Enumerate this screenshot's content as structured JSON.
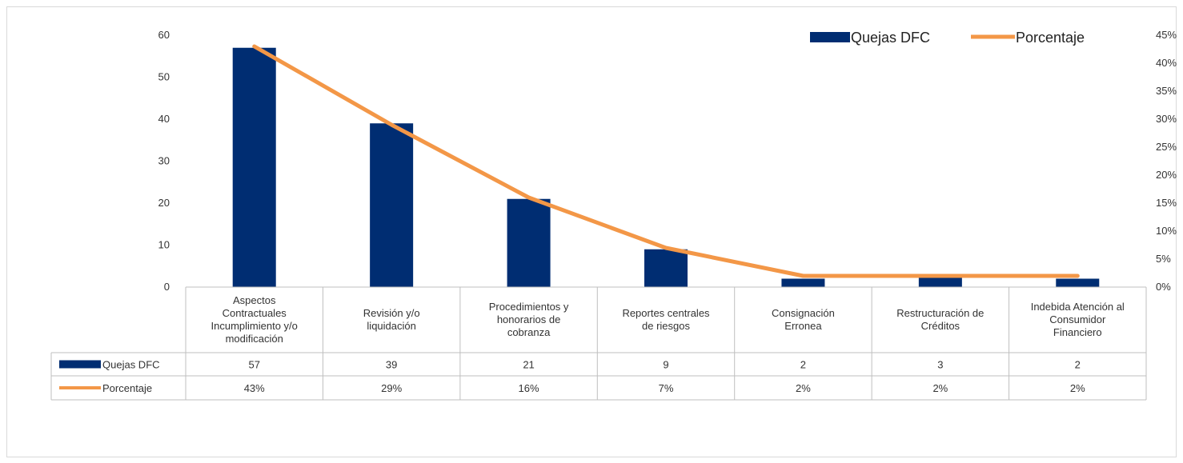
{
  "chart_data": {
    "type": "bar",
    "categories": [
      [
        "Aspectos",
        "Contractuales",
        "Incumplimiento y/o",
        "modificación"
      ],
      [
        "Revisión y/o",
        "liquidación"
      ],
      [
        "Procedimientos y",
        "honorarios de",
        "cobranza"
      ],
      [
        "Reportes centrales",
        "de riesgos"
      ],
      [
        "Consignación",
        "Erronea"
      ],
      [
        "Restructuración de",
        "Créditos"
      ],
      [
        "Indebida Atención al",
        "Consumidor",
        "Financiero"
      ]
    ],
    "series": [
      {
        "name": "Quejas DFC",
        "type": "bar",
        "axis": "left",
        "values": [
          57,
          39,
          21,
          9,
          2,
          3,
          2
        ],
        "labels": [
          "57",
          "39",
          "21",
          "9",
          "2",
          "3",
          "2"
        ]
      },
      {
        "name": "Porcentaje",
        "type": "line",
        "axis": "right",
        "values": [
          43,
          29,
          16,
          7,
          2,
          2,
          2
        ],
        "labels": [
          "43%",
          "29%",
          "16%",
          "7%",
          "2%",
          "2%",
          "2%"
        ]
      }
    ],
    "y_left": {
      "min": 0,
      "max": 60,
      "ticks": [
        "0",
        "10",
        "20",
        "30",
        "40",
        "50",
        "60"
      ]
    },
    "y_right": {
      "min": 0,
      "max": 45,
      "ticks": [
        "0%",
        "5%",
        "10%",
        "15%",
        "20%",
        "25%",
        "30%",
        "35%",
        "40%",
        "45%"
      ]
    },
    "legend_position": "top-right",
    "data_table": true,
    "colors": {
      "bar": "#002D72",
      "line": "#F39747",
      "grid": "#bfbfbf"
    }
  }
}
